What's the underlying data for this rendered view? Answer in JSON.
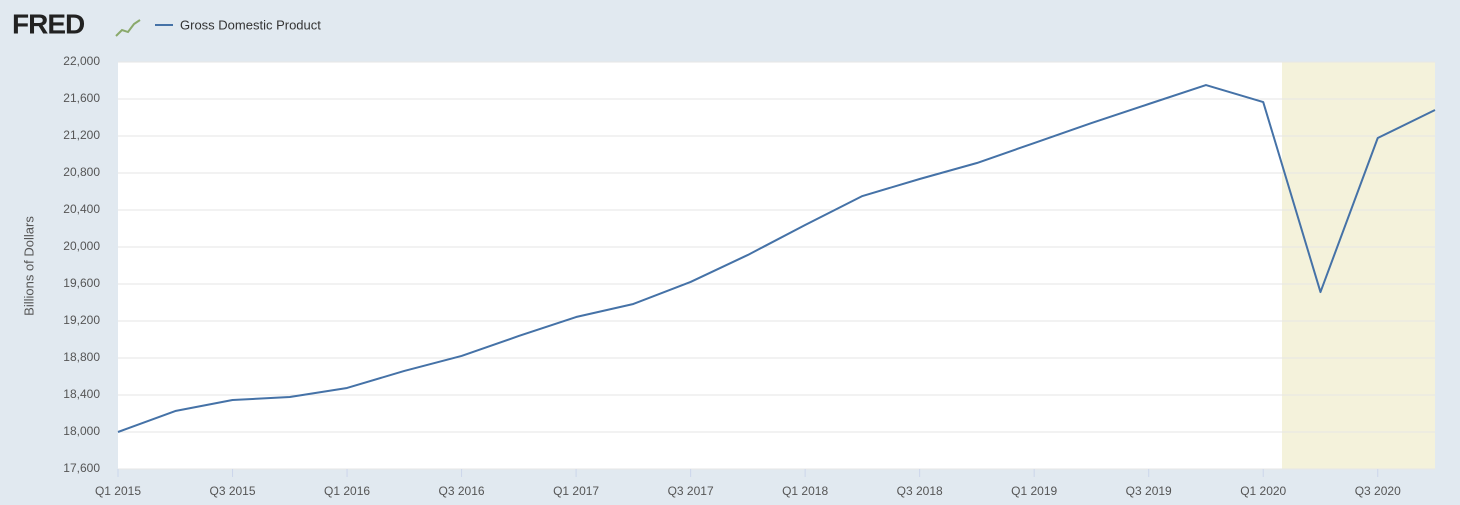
{
  "logo": "FRED",
  "chart_data": {
    "type": "line",
    "y_label": "Billions of Dollars",
    "categories": [
      "Q1 2015",
      null,
      "Q3 2015",
      null,
      "Q1 2016",
      null,
      "Q3 2016",
      null,
      "Q1 2017",
      null,
      "Q3 2017",
      null,
      "Q1 2018",
      null,
      "Q3 2018",
      null,
      "Q1 2019",
      null,
      "Q3 2019",
      null,
      "Q1 2020",
      null,
      "Q3 2020",
      null
    ],
    "series": [
      {
        "name": "Gross Domestic Product",
        "color": "#4572a7",
        "values": [
          18000,
          18227,
          18346,
          18378,
          18476,
          18660,
          18822,
          19038,
          19243,
          19384,
          19622,
          19914,
          20238,
          20551,
          20735,
          20908,
          21124,
          21340,
          21546,
          21751,
          21567,
          19513,
          21178,
          21481
        ]
      }
    ],
    "ylim": [
      17600,
      22000
    ],
    "yticks": [
      {
        "value": 17600,
        "label": "17,600"
      },
      {
        "value": 18000,
        "label": "18,000"
      },
      {
        "value": 18400,
        "label": "18,400"
      },
      {
        "value": 18800,
        "label": "18,800"
      },
      {
        "value": 19200,
        "label": "19,200"
      },
      {
        "value": 19600,
        "label": "19,600"
      },
      {
        "value": 20000,
        "label": "20,000"
      },
      {
        "value": 20400,
        "label": "20,400"
      },
      {
        "value": 20800,
        "label": "20,800"
      },
      {
        "value": 21200,
        "label": "21,200"
      },
      {
        "value": 21600,
        "label": "21,600"
      },
      {
        "value": 22000,
        "label": "22,000"
      }
    ],
    "grid": true
  }
}
